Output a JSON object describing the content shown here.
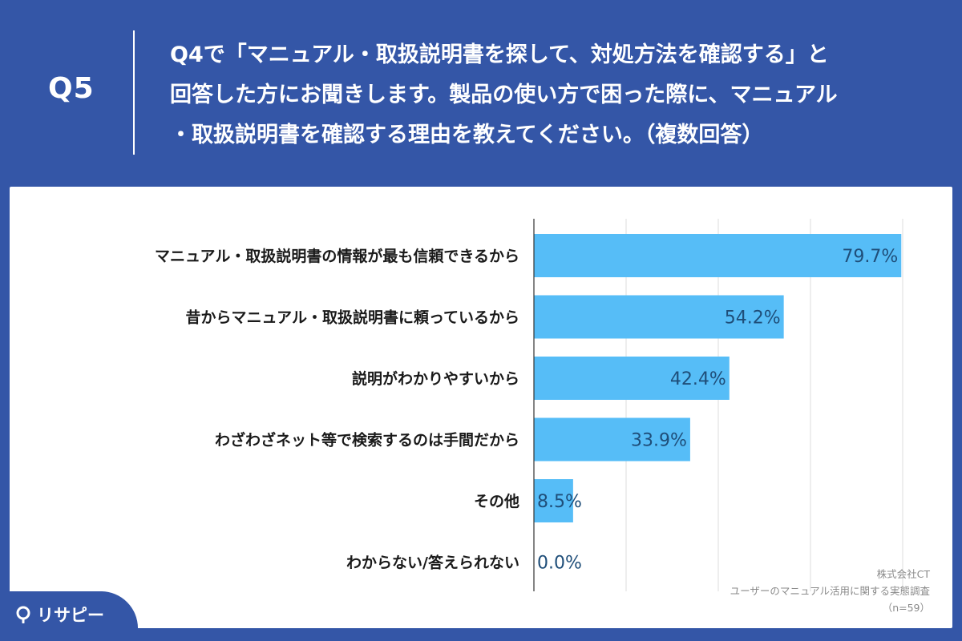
{
  "header": {
    "q_number": "Q5",
    "question_lines": [
      "Q4で「マニュアル・取扱説明書を探して、対処方法を確認する」と",
      "回答した方にお聞きします。製品の使い方で困った際に、マニュアル",
      "・取扱説明書を確認する理由を教えてください。（複数回答）"
    ]
  },
  "source": {
    "company": "株式会社CT",
    "survey": "ユーザーのマニュアル活用に関する実態調査",
    "sample": "（n=59）"
  },
  "logo": {
    "text": "リサピー"
  },
  "colors": {
    "background": "#3456a7",
    "bar": "#56bdf7",
    "value_text": "#1f4e79",
    "gridline": "#dddddd"
  },
  "chart_data": {
    "type": "bar",
    "orientation": "horizontal",
    "categories": [
      "マニュアル・取扱説明書の情報が最も信頼できるから",
      "昔からマニュアル・取扱説明書に頼っているから",
      "説明がわかりやすいから",
      "わざわざネット等で検索するのは手間だから",
      "その他",
      "わからない/答えられない"
    ],
    "values": [
      79.7,
      54.2,
      42.4,
      33.9,
      8.5,
      0.0
    ],
    "value_labels": [
      "79.7%",
      "54.2%",
      "42.4%",
      "33.9%",
      "8.5%",
      "0.0%"
    ],
    "xlim": [
      0,
      80
    ],
    "grid": true,
    "title": "",
    "xlabel": "",
    "ylabel": ""
  }
}
